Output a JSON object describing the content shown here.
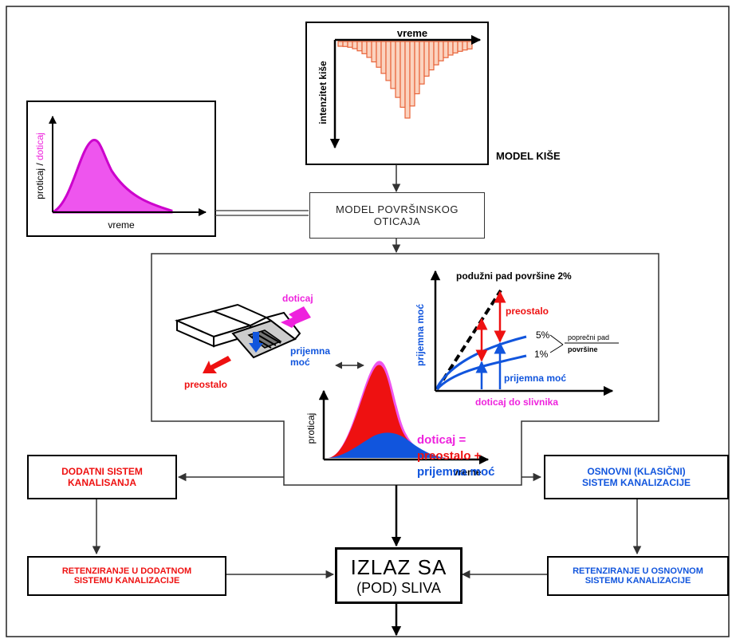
{
  "colors": {
    "red": "#ee1111",
    "blue": "#1155dd",
    "magenta": "#ee22dd",
    "orange": "#e8643a",
    "black": "#000000"
  },
  "rain_model": {
    "x_label": "vreme",
    "y_label": "intenzitet kiše",
    "title": "MODEL KIŠE"
  },
  "runoff_chart": {
    "y_label_part1": "proticaj / ",
    "y_label_part2": "doticaj",
    "x_label": "vreme"
  },
  "surface_model": {
    "line1": "MODEL POVRŠINSKOG",
    "line2": "OTICAJA"
  },
  "street_sketch": {
    "inflow": "doticaj",
    "capacity_line1": "prijemna",
    "capacity_line2": "moć",
    "remainder": "preostalo"
  },
  "capacity_chart": {
    "title": "podužni pad površine 2%",
    "y_label": "prijemna moć",
    "x_label": "doticaj do slivnika",
    "remainder": "preostalo",
    "pct_high": "5%",
    "pct_low": "1%",
    "cross_slope_line1": "poprečni pad",
    "cross_slope_line2": "površine",
    "capacity": "prijemna  moć"
  },
  "hydrograph": {
    "y_label": "proticaj",
    "x_label": "vreme",
    "legend_line1": "doticaj =",
    "legend_line2": "preostalo +",
    "legend_line3": "prijemna moć"
  },
  "boxes": {
    "additional_line1": "DODATNI  SISTEM",
    "additional_line2": "KANALISANJA",
    "basic_line1": "OSNOVNI  (KLASIČNI)",
    "basic_line2": "SISTEM  KANALIZACIJE",
    "retention_additional_line1": "RETENZIRANJE U DODATNOM",
    "retention_additional_line2": "SISTEMU KANALIZACIJE",
    "retention_basic_line1": "RETENZIRANJE  U  OSNOVNOM",
    "retention_basic_line2": "SISTEMU  KANALIZACIJE",
    "outlet_line1": "IZLAZ SA",
    "outlet_line2": "(POD) SLIVA"
  }
}
